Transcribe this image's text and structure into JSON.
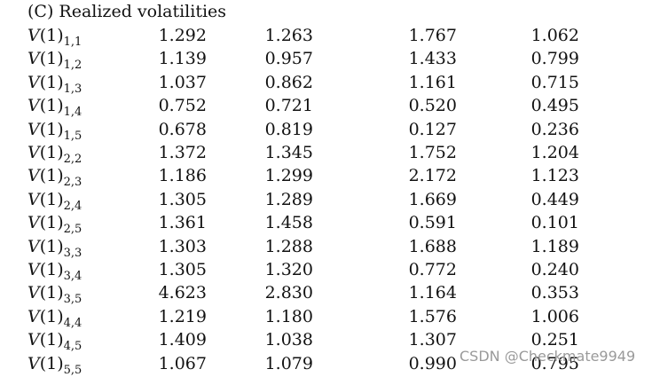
{
  "heading": "(C) Realized volatilities",
  "label_prefix": "V",
  "label_arg": "(1)",
  "rows": [
    {
      "sub": "1,1",
      "values": [
        "1.292",
        "1.263",
        "1.767",
        "1.062"
      ]
    },
    {
      "sub": "1,2",
      "values": [
        "1.139",
        "0.957",
        "1.433",
        "0.799"
      ]
    },
    {
      "sub": "1,3",
      "values": [
        "1.037",
        "0.862",
        "1.161",
        "0.715"
      ]
    },
    {
      "sub": "1,4",
      "values": [
        "0.752",
        "0.721",
        "0.520",
        "0.495"
      ]
    },
    {
      "sub": "1,5",
      "values": [
        "0.678",
        "0.819",
        "0.127",
        "0.236"
      ]
    },
    {
      "sub": "2,2",
      "values": [
        "1.372",
        "1.345",
        "1.752",
        "1.204"
      ]
    },
    {
      "sub": "2,3",
      "values": [
        "1.186",
        "1.299",
        "2.172",
        "1.123"
      ]
    },
    {
      "sub": "2,4",
      "values": [
        "1.305",
        "1.289",
        "1.669",
        "0.449"
      ]
    },
    {
      "sub": "2,5",
      "values": [
        "1.361",
        "1.458",
        "0.591",
        "0.101"
      ]
    },
    {
      "sub": "3,3",
      "values": [
        "1.303",
        "1.288",
        "1.688",
        "1.189"
      ]
    },
    {
      "sub": "3,4",
      "values": [
        "1.305",
        "1.320",
        "0.772",
        "0.240"
      ]
    },
    {
      "sub": "3,5",
      "values": [
        "4.623",
        "2.830",
        "1.164",
        "0.353"
      ]
    },
    {
      "sub": "4,4",
      "values": [
        "1.219",
        "1.180",
        "1.576",
        "1.006"
      ]
    },
    {
      "sub": "4,5",
      "values": [
        "1.409",
        "1.038",
        "1.307",
        "0.251"
      ]
    },
    {
      "sub": "5,5",
      "values": [
        "1.067",
        "1.079",
        "0.990",
        "0.795"
      ]
    }
  ],
  "watermark": "CSDN @Checkmate9949"
}
